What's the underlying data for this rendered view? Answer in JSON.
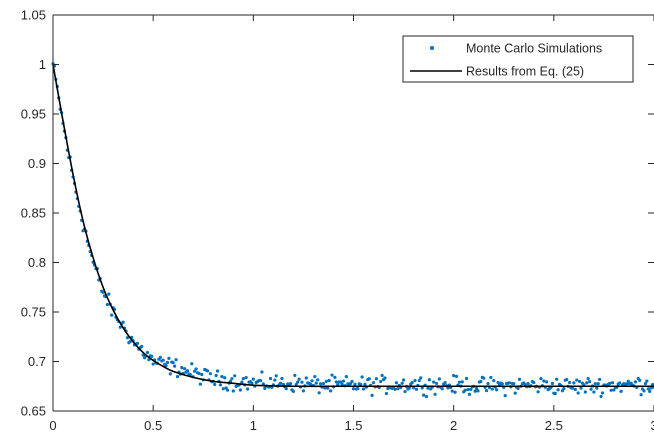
{
  "chart_data": {
    "type": "scatter",
    "title": "",
    "xlabel": "",
    "ylabel": "",
    "xlim": [
      0,
      3
    ],
    "ylim": [
      0.65,
      1.05
    ],
    "xticks": [
      {
        "value": 0,
        "label": "0"
      },
      {
        "value": 0.5,
        "label": "0.5"
      },
      {
        "value": 1,
        "label": "1"
      },
      {
        "value": 1.5,
        "label": "1.5"
      },
      {
        "value": 2,
        "label": "2"
      },
      {
        "value": 2.5,
        "label": "2.5"
      },
      {
        "value": 3,
        "label": "3"
      }
    ],
    "yticks": [
      {
        "value": 0.65,
        "label": "0.65"
      },
      {
        "value": 0.7,
        "label": "0.7"
      },
      {
        "value": 0.75,
        "label": "0.75"
      },
      {
        "value": 0.8,
        "label": "0.8"
      },
      {
        "value": 0.85,
        "label": "0.85"
      },
      {
        "value": 0.9,
        "label": "0.9"
      },
      {
        "value": 0.95,
        "label": "0.95"
      },
      {
        "value": 1,
        "label": "1"
      },
      {
        "value": 1.05,
        "label": "1.05"
      }
    ],
    "grid": false,
    "legend": {
      "position": "top-right",
      "entries": [
        {
          "label": "Monte Carlo Simulations",
          "marker": "dot",
          "color": "#0072BD"
        },
        {
          "label": "Results from Eq. (25)",
          "marker": "line",
          "color": "#000000"
        }
      ]
    },
    "series": [
      {
        "name": "Monte Carlo Simulations",
        "kind": "points",
        "color": "#0072BD",
        "x": [
          0,
          0.05,
          0.1,
          0.15,
          0.2,
          0.25,
          0.3,
          0.35,
          0.4,
          0.45,
          0.5,
          0.55,
          0.6,
          0.7,
          0.8,
          0.9,
          1.0,
          1.2,
          1.4,
          1.6,
          1.8,
          2.0,
          2.2,
          2.4,
          2.6,
          2.8,
          3.0
        ],
        "y": [
          1.0,
          0.94,
          0.885,
          0.84,
          0.8,
          0.77,
          0.75,
          0.735,
          0.72,
          0.71,
          0.7,
          0.697,
          0.695,
          0.688,
          0.682,
          0.68,
          0.678,
          0.678,
          0.676,
          0.676,
          0.677,
          0.676,
          0.675,
          0.676,
          0.675,
          0.676,
          0.677
        ]
      },
      {
        "name": "Results from Eq. (25)",
        "kind": "line",
        "color": "#000000",
        "x": [
          0,
          0.05,
          0.1,
          0.15,
          0.2,
          0.25,
          0.3,
          0.35,
          0.4,
          0.45,
          0.5,
          0.55,
          0.6,
          0.7,
          0.8,
          0.9,
          1.0,
          1.2,
          1.4,
          1.6,
          1.8,
          2.0,
          2.5,
          3.0
        ],
        "y": [
          1.0,
          0.943,
          0.889,
          0.842,
          0.805,
          0.775,
          0.752,
          0.734,
          0.72,
          0.709,
          0.701,
          0.695,
          0.69,
          0.684,
          0.68,
          0.678,
          0.676,
          0.675,
          0.675,
          0.675,
          0.675,
          0.675,
          0.675,
          0.675
        ]
      }
    ]
  }
}
